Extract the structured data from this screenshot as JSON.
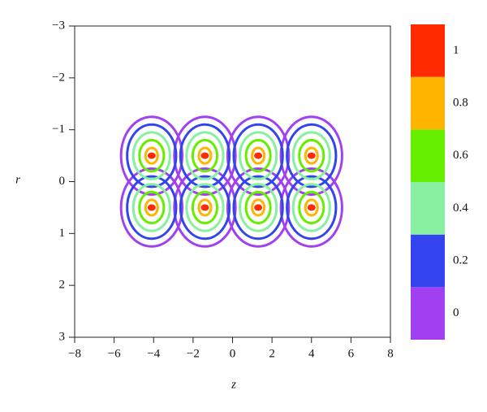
{
  "chart_data": {
    "type": "contour",
    "x_label": "z",
    "y_label": "r",
    "xlim": [
      -8,
      8
    ],
    "ylim": [
      -3,
      3
    ],
    "y_inverted": true,
    "xticks": [
      {
        "value": -8,
        "label": "−8"
      },
      {
        "value": -6,
        "label": "−6"
      },
      {
        "value": -4,
        "label": "−4"
      },
      {
        "value": -2,
        "label": "−2"
      },
      0,
      2,
      4,
      6,
      8
    ],
    "yticks": [
      {
        "value": -3,
        "label": "−3"
      },
      {
        "value": -2,
        "label": "−2"
      },
      {
        "value": -1,
        "label": "−1"
      },
      0,
      1,
      2,
      3
    ],
    "peaks": [
      {
        "z": -4.1,
        "r": -0.5
      },
      {
        "z": -1.4,
        "r": -0.5
      },
      {
        "z": 1.3,
        "r": -0.5
      },
      {
        "z": 4.0,
        "r": -0.5
      },
      {
        "z": -4.1,
        "r": 0.5
      },
      {
        "z": -1.4,
        "r": 0.5
      },
      {
        "z": 1.3,
        "r": 0.5
      },
      {
        "z": 4.0,
        "r": 0.5
      }
    ],
    "colorbar": {
      "levels": [
        0,
        0.2,
        0.4,
        0.6,
        0.8,
        1
      ],
      "colors": [
        "#a040f0",
        "#3344ee",
        "#88f0a0",
        "#66ee00",
        "#ffb400",
        "#ff2a00"
      ]
    }
  }
}
